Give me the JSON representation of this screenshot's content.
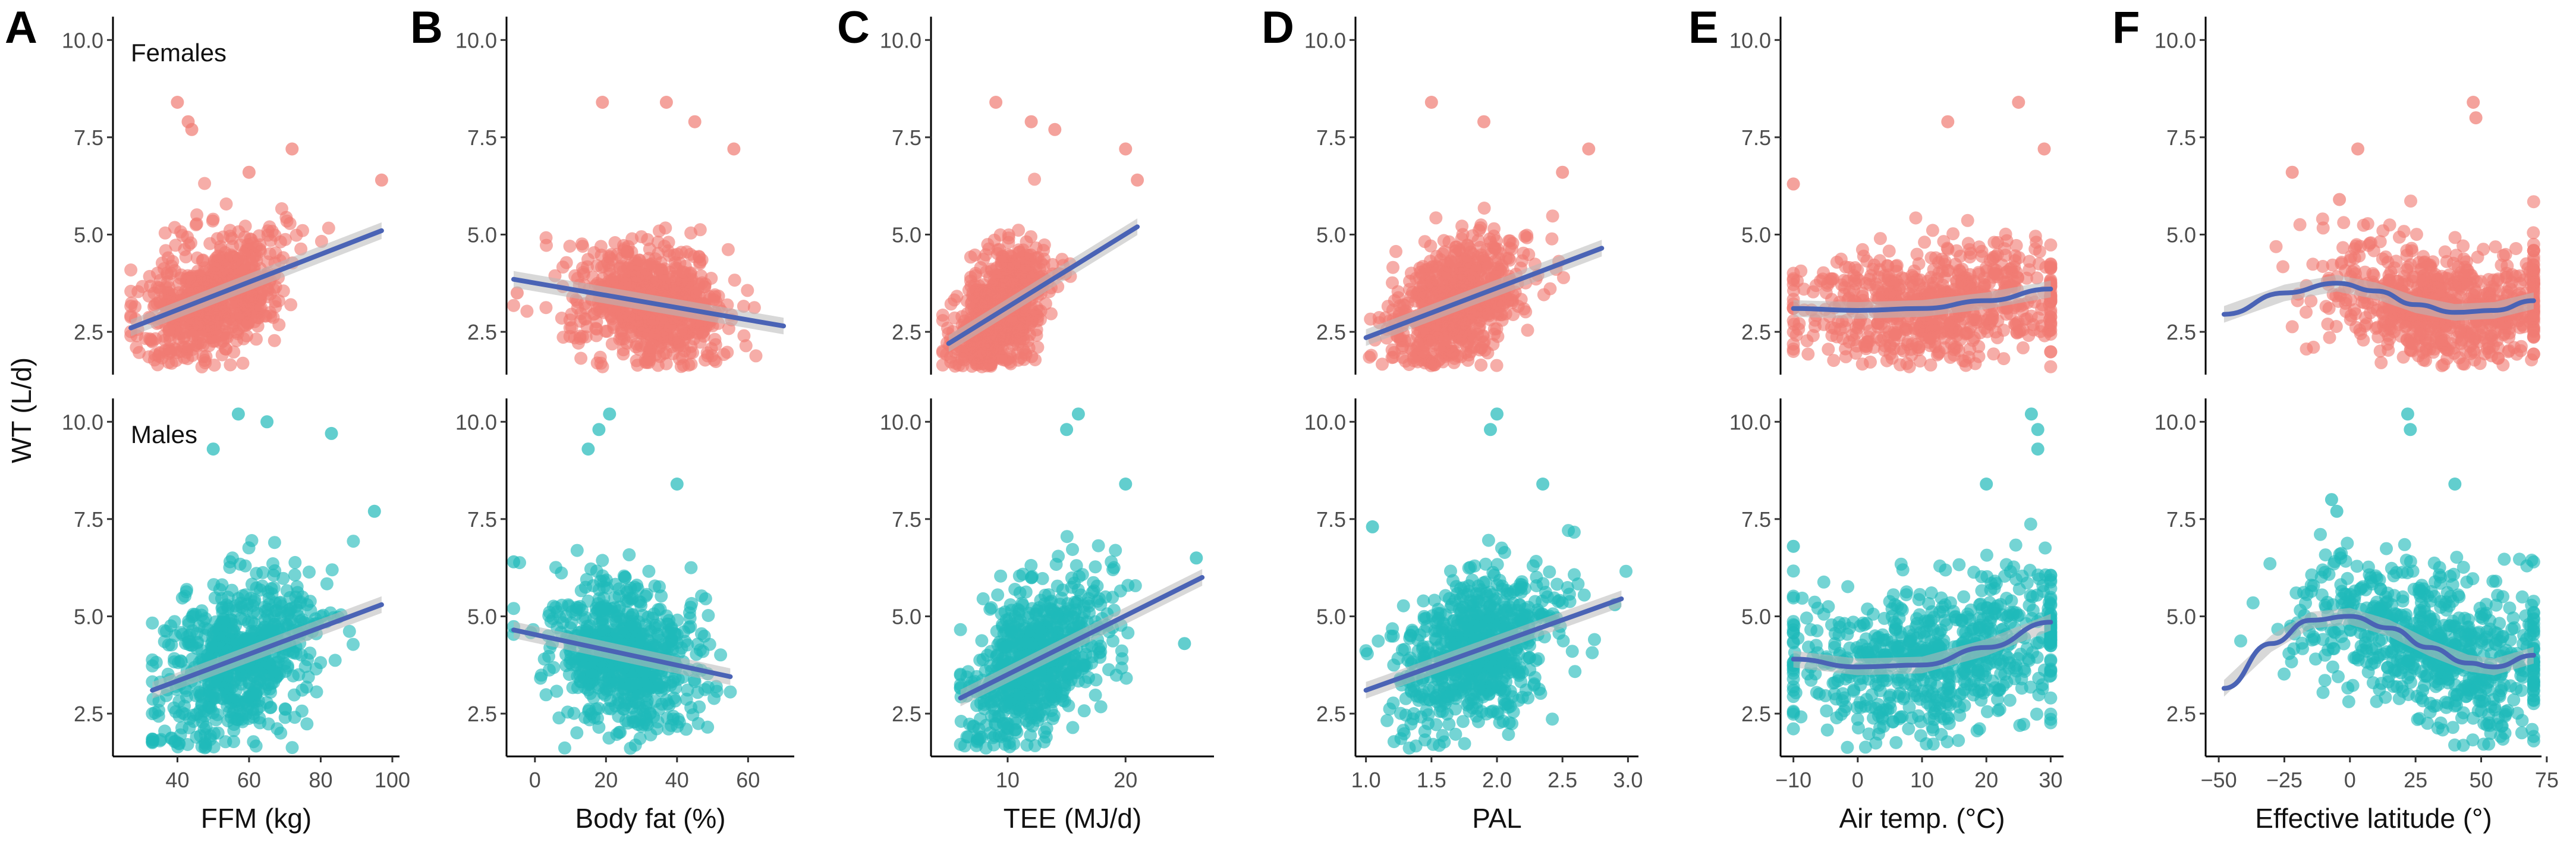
{
  "figure": {
    "ylabel": "WT (L/d)",
    "row_labels": [
      "Females",
      "Males"
    ],
    "colors": {
      "females_points": "#F07A72",
      "males_points": "#1FB9B9",
      "fit_line": "#4A63B5",
      "confidence_band": "#B8B8B8",
      "axis": "#000000"
    }
  },
  "chart_data": [
    {
      "panel": "A",
      "type": "scatter",
      "xlabel": "FFM (kg)",
      "ylabel": "WT (L/d)",
      "xlim": [
        22,
        102
      ],
      "xticks": [
        40,
        60,
        80,
        100
      ],
      "ylim": [
        1.4,
        10.6
      ],
      "yticks": [
        2.5,
        5.0,
        7.5,
        10.0
      ],
      "grid": false,
      "smooth": "linear",
      "series": [
        {
          "name": "Females",
          "x_range": [
            27,
            97
          ],
          "center": [
            50,
            3.3
          ],
          "spread": [
            10,
            0.9
          ],
          "fit": [
            [
              27,
              2.6
            ],
            [
              97,
              5.1
            ]
          ],
          "extremes": [
            [
              40,
              8.4
            ],
            [
              43,
              7.9
            ],
            [
              44,
              7.7
            ],
            [
              60,
              6.6
            ],
            [
              97,
              6.4
            ],
            [
              72,
              7.2
            ]
          ]
        },
        {
          "name": "Males",
          "x_range": [
            33,
            97
          ],
          "center": [
            57,
            4.1
          ],
          "spread": [
            11,
            1.2
          ],
          "fit": [
            [
              33,
              3.1
            ],
            [
              97,
              5.3
            ]
          ],
          "extremes": [
            [
              57,
              10.2
            ],
            [
              65,
              10.0
            ],
            [
              50,
              9.3
            ],
            [
              83,
              9.7
            ],
            [
              95,
              7.7
            ]
          ]
        }
      ]
    },
    {
      "panel": "B",
      "type": "scatter",
      "xlabel": "Body fat (%)",
      "ylabel": "",
      "xlim": [
        -8,
        73
      ],
      "xticks": [
        0,
        20,
        40,
        60
      ],
      "ylim": [
        1.4,
        10.6
      ],
      "yticks": [
        2.5,
        5.0,
        7.5,
        10.0
      ],
      "grid": false,
      "smooth": "linear",
      "series": [
        {
          "name": "Females",
          "x_range": [
            -6,
            70
          ],
          "center": [
            33,
            3.3
          ],
          "spread": [
            11,
            0.9
          ],
          "fit": [
            [
              -6,
              3.85
            ],
            [
              70,
              2.65
            ]
          ],
          "extremes": [
            [
              19,
              8.4
            ],
            [
              37,
              8.4
            ],
            [
              45,
              7.9
            ],
            [
              56,
              7.2
            ],
            [
              -5,
              3.5
            ]
          ]
        },
        {
          "name": "Males",
          "x_range": [
            -6,
            55
          ],
          "center": [
            25,
            4.1
          ],
          "spread": [
            10,
            1.1
          ],
          "fit": [
            [
              -6,
              4.65
            ],
            [
              55,
              3.45
            ]
          ],
          "extremes": [
            [
              21,
              10.2
            ],
            [
              18,
              9.8
            ],
            [
              15,
              9.3
            ],
            [
              40,
              8.4
            ],
            [
              -6,
              6.4
            ]
          ]
        }
      ]
    },
    {
      "panel": "C",
      "type": "scatter",
      "xlabel": "TEE (MJ/d)",
      "ylabel": "",
      "xlim": [
        3.5,
        27.5
      ],
      "xticks": [
        10,
        20
      ],
      "ylim": [
        1.4,
        10.6
      ],
      "yticks": [
        2.5,
        5.0,
        7.5,
        10.0
      ],
      "grid": false,
      "smooth": "linear",
      "series": [
        {
          "name": "Females",
          "x_range": [
            4.5,
            20
          ],
          "center": [
            9.5,
            3.3
          ],
          "spread": [
            2.0,
            0.9
          ],
          "fit": [
            [
              5,
              2.2
            ],
            [
              21,
              5.2
            ]
          ],
          "extremes": [
            [
              9,
              8.4
            ],
            [
              12,
              7.9
            ],
            [
              14,
              7.7
            ],
            [
              20,
              7.2
            ],
            [
              21,
              6.4
            ]
          ]
        },
        {
          "name": "Males",
          "x_range": [
            6,
            26.5
          ],
          "center": [
            12.5,
            4.1
          ],
          "spread": [
            2.8,
            1.1
          ],
          "fit": [
            [
              6,
              2.9
            ],
            [
              26.5,
              6.0
            ]
          ],
          "extremes": [
            [
              16,
              10.2
            ],
            [
              15,
              9.8
            ],
            [
              20,
              8.4
            ],
            [
              26,
              6.5
            ],
            [
              25,
              4.3
            ]
          ]
        }
      ]
    },
    {
      "panel": "D",
      "type": "scatter",
      "xlabel": "PAL",
      "ylabel": "",
      "xlim": [
        0.92,
        3.08
      ],
      "xticks": [
        1.0,
        1.5,
        2.0,
        2.5,
        3.0
      ],
      "ylim": [
        1.4,
        10.6
      ],
      "yticks": [
        2.5,
        5.0,
        7.5,
        10.0
      ],
      "grid": false,
      "smooth": "linear",
      "series": [
        {
          "name": "Females",
          "x_range": [
            1.0,
            2.8
          ],
          "center": [
            1.7,
            3.4
          ],
          "spread": [
            0.25,
            0.9
          ],
          "fit": [
            [
              1.0,
              2.35
            ],
            [
              2.8,
              4.65
            ]
          ],
          "extremes": [
            [
              1.5,
              8.4
            ],
            [
              1.9,
              7.9
            ],
            [
              2.5,
              6.6
            ],
            [
              2.7,
              7.2
            ]
          ]
        },
        {
          "name": "Males",
          "x_range": [
            1.0,
            3.0
          ],
          "center": [
            1.85,
            4.1
          ],
          "spread": [
            0.3,
            1.1
          ],
          "fit": [
            [
              1.0,
              3.1
            ],
            [
              2.95,
              5.45
            ]
          ],
          "extremes": [
            [
              2.0,
              10.2
            ],
            [
              1.95,
              9.8
            ],
            [
              2.35,
              8.4
            ],
            [
              1.05,
              7.3
            ],
            [
              2.9,
              5.3
            ]
          ]
        }
      ]
    },
    {
      "panel": "E",
      "type": "scatter",
      "xlabel": "Air temp. (°C)",
      "ylabel": "",
      "xlim": [
        -12,
        32
      ],
      "xticks": [
        -10,
        0,
        10,
        20,
        30
      ],
      "ylim": [
        1.4,
        10.6
      ],
      "yticks": [
        2.5,
        5.0,
        7.5,
        10.0
      ],
      "grid": false,
      "smooth": "loess",
      "series": [
        {
          "name": "Females",
          "x_range": [
            -10,
            30
          ],
          "center": [
            12,
            3.3
          ],
          "spread": [
            11,
            0.9
          ],
          "fit": [
            [
              -10,
              3.1
            ],
            [
              0,
              3.05
            ],
            [
              10,
              3.1
            ],
            [
              20,
              3.3
            ],
            [
              30,
              3.6
            ]
          ],
          "extremes": [
            [
              -10,
              6.3
            ],
            [
              14,
              7.9
            ],
            [
              25,
              8.4
            ],
            [
              29,
              7.2
            ]
          ]
        },
        {
          "name": "Males",
          "x_range": [
            -10,
            30
          ],
          "center": [
            12,
            3.9
          ],
          "spread": [
            11,
            1.1
          ],
          "fit": [
            [
              -10,
              3.9
            ],
            [
              0,
              3.7
            ],
            [
              10,
              3.75
            ],
            [
              20,
              4.2
            ],
            [
              30,
              4.85
            ]
          ],
          "extremes": [
            [
              27,
              10.2
            ],
            [
              28,
              9.8
            ],
            [
              28,
              9.3
            ],
            [
              -10,
              6.8
            ],
            [
              20,
              8.4
            ]
          ]
        }
      ]
    },
    {
      "panel": "F",
      "type": "scatter",
      "xlabel": "Effective latitude (°)",
      "ylabel": "",
      "xlim": [
        -55,
        73
      ],
      "xticks": [
        -50,
        -25,
        0,
        25,
        50,
        75
      ],
      "ylim": [
        1.4,
        10.6
      ],
      "yticks": [
        2.5,
        5.0,
        7.5,
        10.0
      ],
      "grid": false,
      "smooth": "loess",
      "series": [
        {
          "name": "Females",
          "x_range": [
            -48,
            70
          ],
          "center": [
            35,
            3.3
          ],
          "spread": [
            22,
            0.9
          ],
          "fit": [
            [
              -48,
              2.95
            ],
            [
              -25,
              3.5
            ],
            [
              -5,
              3.75
            ],
            [
              10,
              3.55
            ],
            [
              25,
              3.2
            ],
            [
              40,
              3.0
            ],
            [
              55,
              3.05
            ],
            [
              70,
              3.3
            ]
          ],
          "extremes": [
            [
              -22,
              6.6
            ],
            [
              3,
              7.2
            ],
            [
              47,
              8.4
            ],
            [
              48,
              8.0
            ],
            [
              -4,
              5.9
            ]
          ]
        },
        {
          "name": "Males",
          "x_range": [
            -48,
            70
          ],
          "center": [
            30,
            4.1
          ],
          "spread": [
            24,
            1.1
          ],
          "fit": [
            [
              -48,
              3.15
            ],
            [
              -30,
              4.3
            ],
            [
              -15,
              4.9
            ],
            [
              0,
              5.0
            ],
            [
              15,
              4.7
            ],
            [
              30,
              4.2
            ],
            [
              45,
              3.8
            ],
            [
              55,
              3.7
            ],
            [
              70,
              4.0
            ]
          ],
          "extremes": [
            [
              22,
              10.2
            ],
            [
              23,
              9.8
            ],
            [
              -7,
              8.0
            ],
            [
              40,
              8.4
            ],
            [
              -5,
              7.7
            ]
          ]
        }
      ]
    }
  ]
}
